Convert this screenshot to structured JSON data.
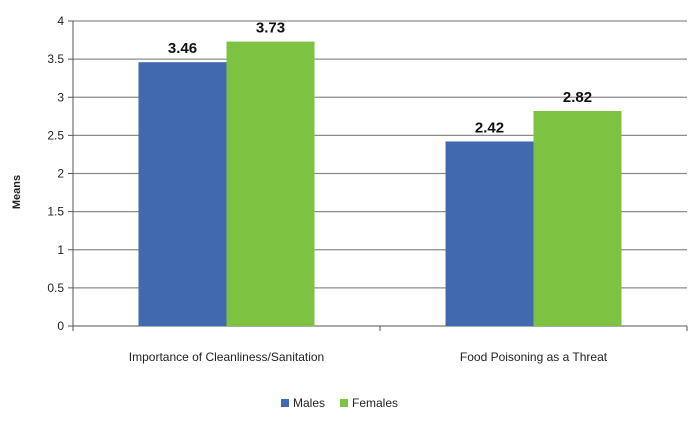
{
  "chart_data": {
    "type": "bar",
    "title": "",
    "xlabel": "",
    "ylabel": "Means",
    "ylim": [
      0,
      4
    ],
    "ytick_step": 0.5,
    "categories": [
      "Importance of Cleanliness/Sanitation",
      "Food Poisoning as a Threat"
    ],
    "series": [
      {
        "name": "Males",
        "values": [
          3.46,
          2.42
        ],
        "labels": [
          "3.46",
          "2.42"
        ],
        "color": "#4169b0"
      },
      {
        "name": "Females",
        "values": [
          3.73,
          2.82
        ],
        "labels": [
          "3.73",
          "2.82"
        ],
        "color": "#7ec242"
      }
    ],
    "grid": true,
    "legend_position": "bottom"
  }
}
